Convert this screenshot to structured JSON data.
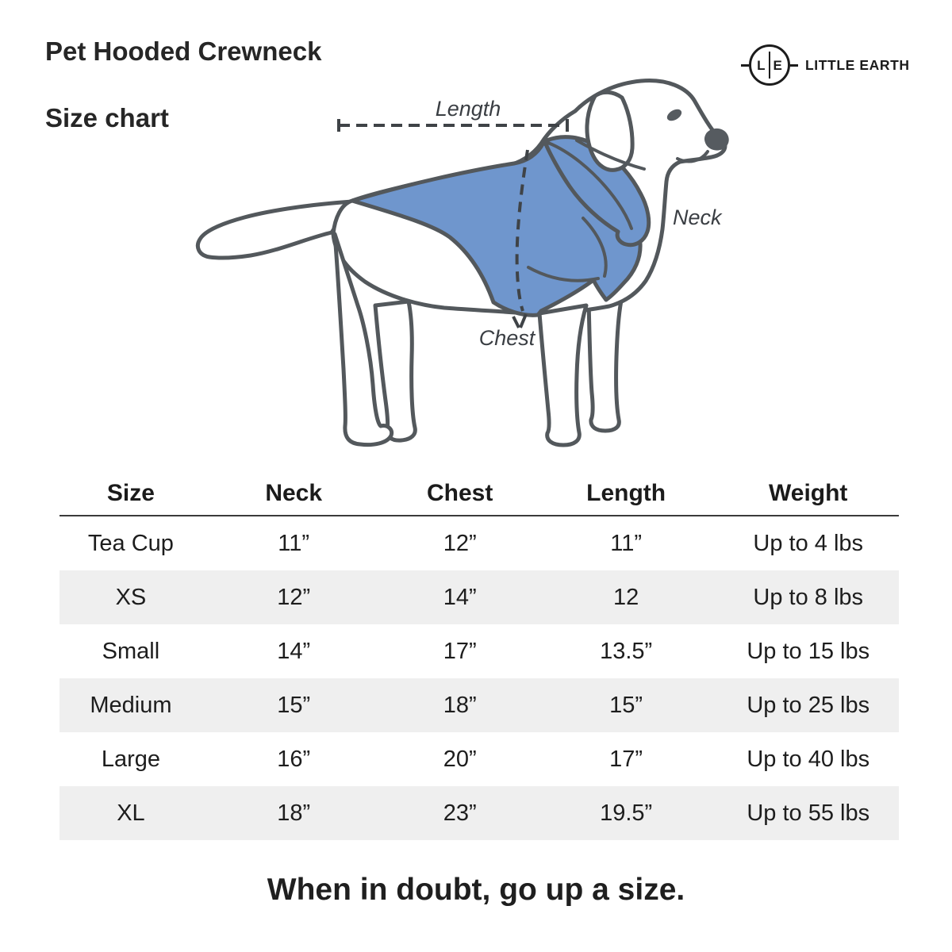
{
  "header": {
    "title_line1": "Pet Hooded Crewneck",
    "title_line2": "Size chart"
  },
  "brand": {
    "monogram_left": "L",
    "monogram_right": "E",
    "name": "LITTLE EARTH"
  },
  "diagram": {
    "labels": {
      "length": "Length",
      "neck": "Neck",
      "chest": "Chest"
    },
    "colors": {
      "sweater": "#6F96CD",
      "outline": "#53585C"
    }
  },
  "chart_data": {
    "type": "table",
    "title": "Pet Hooded Crewneck Size chart",
    "headers": [
      "Size",
      "Neck",
      "Chest",
      "Length",
      "Weight"
    ],
    "rows": [
      [
        "Tea Cup",
        "11”",
        "12”",
        "11”",
        "Up to 4 lbs"
      ],
      [
        "XS",
        "12”",
        "14”",
        "12",
        "Up to 8 lbs"
      ],
      [
        "Small",
        "14”",
        "17”",
        "13.5”",
        "Up to 15 lbs"
      ],
      [
        "Medium",
        "15”",
        "18”",
        "15”",
        "Up to 25 lbs"
      ],
      [
        "Large",
        "16”",
        "20”",
        "17”",
        "Up to 40 lbs"
      ],
      [
        "XL",
        "18”",
        "23”",
        "19.5”",
        "Up to 55 lbs"
      ]
    ],
    "shaded_rows": [
      1,
      3,
      5
    ],
    "shaded_row_color": "#EFEFEF"
  },
  "footer": {
    "note": "When in doubt, go up a size."
  }
}
